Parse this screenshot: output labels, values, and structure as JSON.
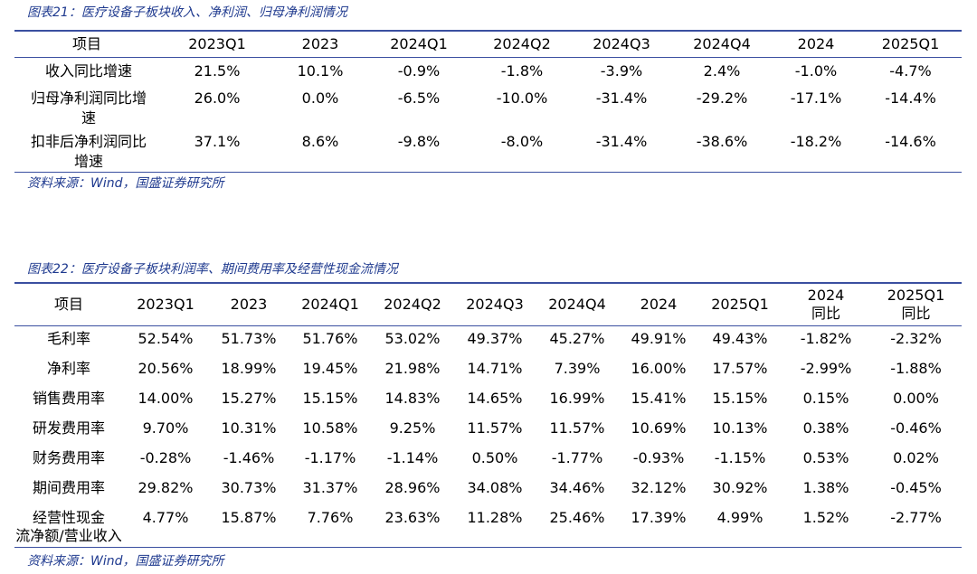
{
  "table1": {
    "caption": "图表21：医疗设备子板块收入、净利润、归母净利润情况",
    "headers": [
      "项目",
      "2023Q1",
      "2023",
      "2024Q1",
      "2024Q2",
      "2024Q3",
      "2024Q4",
      "2024",
      "2025Q1"
    ],
    "rows": [
      {
        "label": "收入同比增速",
        "values": [
          "21.5%",
          "10.1%",
          "-0.9%",
          "-1.8%",
          "-3.9%",
          "2.4%",
          "-1.0%",
          "-4.7%"
        ]
      },
      {
        "label": "归母净利润同比增速",
        "values": [
          "26.0%",
          "0.0%",
          "-6.5%",
          "-10.0%",
          "-31.4%",
          "-29.2%",
          "-17.1%",
          "-14.4%"
        ]
      },
      {
        "label": "扣非后净利润同比增速",
        "values": [
          "37.1%",
          "8.6%",
          "-9.8%",
          "-8.0%",
          "-31.4%",
          "-38.6%",
          "-18.2%",
          "-14.6%"
        ]
      }
    ],
    "source": "资料来源：Wind，国盛证券研究所"
  },
  "table2": {
    "caption": "图表22：医疗设备子板块利润率、期间费用率及经营性现金流情况",
    "headers": [
      "项目",
      "2023Q1",
      "2023",
      "2024Q1",
      "2024Q2",
      "2024Q3",
      "2024Q4",
      "2024",
      "2025Q1",
      "2024\n同比",
      "2025Q1\n同比"
    ],
    "rows": [
      {
        "label": "毛利率",
        "values": [
          "52.54%",
          "51.73%",
          "51.76%",
          "53.02%",
          "49.37%",
          "45.27%",
          "49.91%",
          "49.43%",
          "-1.82%",
          "-2.32%"
        ]
      },
      {
        "label": "净利率",
        "values": [
          "20.56%",
          "18.99%",
          "19.45%",
          "21.98%",
          "14.71%",
          "7.39%",
          "16.00%",
          "17.57%",
          "-2.99%",
          "-1.88%"
        ]
      },
      {
        "label": "销售费用率",
        "values": [
          "14.00%",
          "15.27%",
          "15.15%",
          "14.83%",
          "14.65%",
          "16.99%",
          "15.41%",
          "15.15%",
          "0.15%",
          "0.00%"
        ]
      },
      {
        "label": "研发费用率",
        "values": [
          "9.70%",
          "10.31%",
          "10.58%",
          "9.25%",
          "11.57%",
          "11.57%",
          "10.69%",
          "10.13%",
          "0.38%",
          "-0.46%"
        ]
      },
      {
        "label": "财务费用率",
        "values": [
          "-0.28%",
          "-1.46%",
          "-1.17%",
          "-1.14%",
          "0.50%",
          "-1.77%",
          "-0.93%",
          "-1.15%",
          "0.53%",
          "0.02%"
        ]
      },
      {
        "label": "期间费用率",
        "values": [
          "29.82%",
          "30.73%",
          "31.37%",
          "28.96%",
          "34.08%",
          "34.46%",
          "32.12%",
          "30.92%",
          "1.38%",
          "-0.45%"
        ]
      },
      {
        "label": "经营性现金流净额/营业收入",
        "values": [
          "4.77%",
          "15.87%",
          "7.76%",
          "23.63%",
          "11.28%",
          "25.46%",
          "17.39%",
          "4.99%",
          "1.52%",
          "-2.77%"
        ]
      }
    ],
    "source": "资料来源：Wind，国盛证券研究所"
  }
}
